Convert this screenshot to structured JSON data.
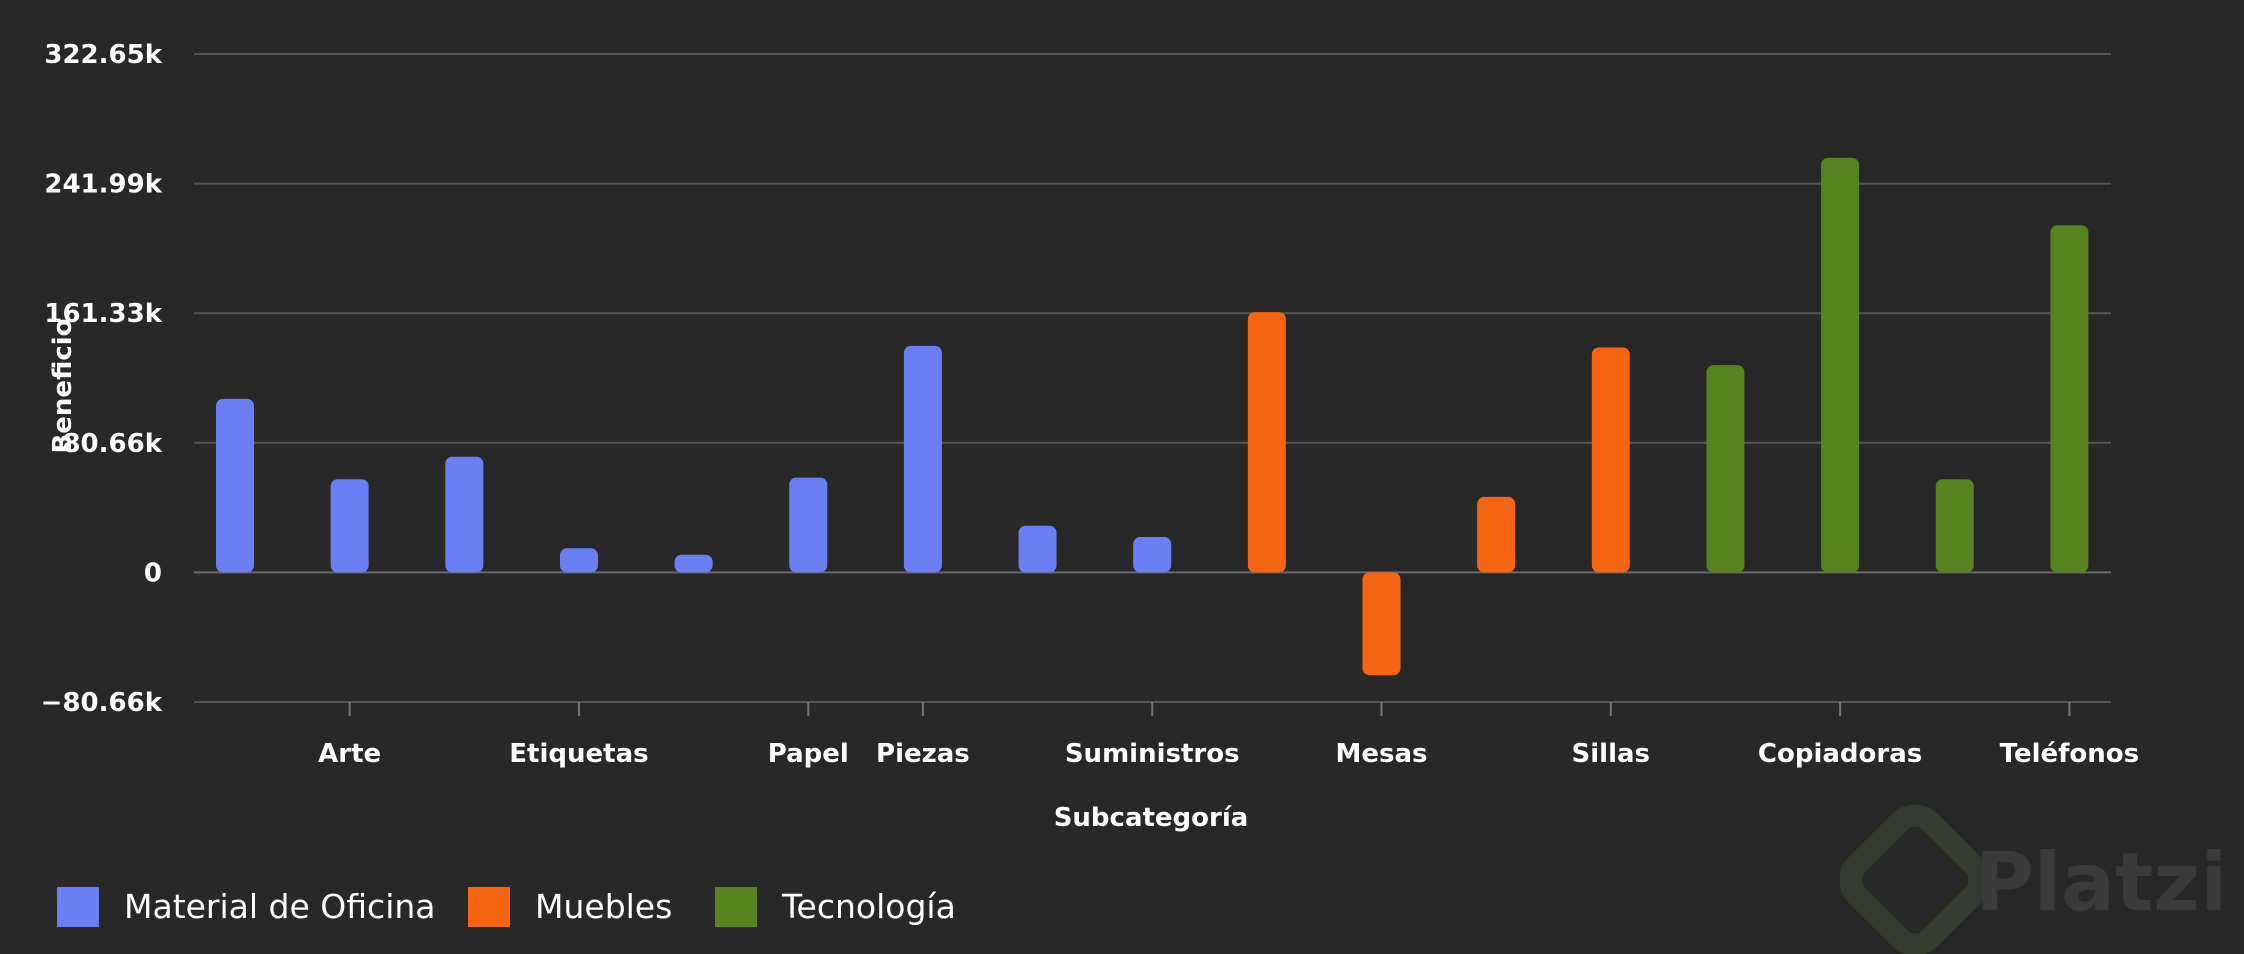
{
  "chart_data": {
    "type": "bar",
    "xlabel": "Subcategoría",
    "ylabel": "Beneficio",
    "ylim": [
      -80.66,
      322.65
    ],
    "y_ticks": [
      -80.66,
      0,
      80.66,
      161.33,
      241.99,
      322.65
    ],
    "y_tick_labels": [
      "−80.66k",
      "0",
      "80.66k",
      "161.33k",
      "241.99k",
      "322.65k"
    ],
    "grid": true,
    "legend_position": "bottom-left",
    "x_tick_labels": [
      {
        "label": "Arte",
        "index": 1
      },
      {
        "label": "Etiquetas",
        "index": 3
      },
      {
        "label": "Papel",
        "index": 5
      },
      {
        "label": "Piezas",
        "index": 6
      },
      {
        "label": "Suministros",
        "index": 8
      },
      {
        "label": "Mesas",
        "index": 10
      },
      {
        "label": "Sillas",
        "index": 12
      },
      {
        "label": "Copiadoras",
        "index": 14
      },
      {
        "label": "Teléfonos",
        "index": 16
      }
    ],
    "bars": [
      {
        "series": 0,
        "value": 108
      },
      {
        "series": 0,
        "value": 58
      },
      {
        "series": 0,
        "value": 72
      },
      {
        "series": 0,
        "value": 15
      },
      {
        "series": 0,
        "value": 11
      },
      {
        "series": 0,
        "value": 59
      },
      {
        "series": 0,
        "value": 141
      },
      {
        "series": 0,
        "value": 29
      },
      {
        "series": 0,
        "value": 22
      },
      {
        "series": 1,
        "value": 162
      },
      {
        "series": 1,
        "value": -64
      },
      {
        "series": 1,
        "value": 47
      },
      {
        "series": 1,
        "value": 140
      },
      {
        "series": 2,
        "value": 129
      },
      {
        "series": 2,
        "value": 258
      },
      {
        "series": 2,
        "value": 58
      },
      {
        "series": 2,
        "value": 216
      }
    ],
    "series": [
      {
        "name": "Material de Oficina",
        "color": "#6b7ff5"
      },
      {
        "name": "Muebles",
        "color": "#f56512"
      },
      {
        "name": "Tecnología",
        "color": "#56841e"
      }
    ]
  },
  "watermark": {
    "text": "Platzi"
  }
}
